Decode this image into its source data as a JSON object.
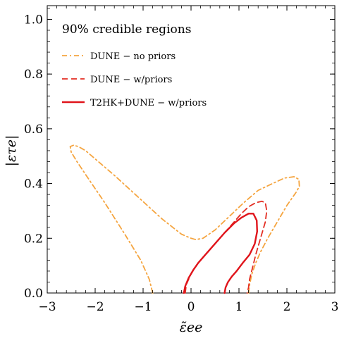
{
  "chart_data": {
    "type": "line",
    "title": "90% credible regions",
    "xlabel": "ε̃ee",
    "ylabel": "|ετe|",
    "xlim": [
      -3,
      3
    ],
    "ylim": [
      0,
      1.05
    ],
    "xticks": [
      -3,
      -2,
      -1,
      0,
      1,
      2,
      3
    ],
    "xtick_labels": [
      "−3",
      "−2",
      "−1",
      "0",
      "1",
      "2",
      "3"
    ],
    "yticks": [
      0.0,
      0.2,
      0.4,
      0.6,
      0.8,
      1.0
    ],
    "ytick_labels": [
      "0.0",
      "0.2",
      "0.4",
      "0.6",
      "0.8",
      "1.0"
    ],
    "grid": false,
    "legend_position": "top-left",
    "series": [
      {
        "name": "DUNE − no priors",
        "color": "#f5a540",
        "style": "dashdot",
        "x": [
          -0.8,
          -0.87,
          -1.05,
          -1.4,
          -1.8,
          -2.15,
          -2.38,
          -2.5,
          -2.52,
          -2.45,
          -2.35,
          -2.2,
          -2.0,
          -1.6,
          -1.1,
          -0.6,
          -0.2,
          0.0,
          0.1,
          0.25,
          0.5,
          0.8,
          1.1,
          1.4,
          1.7,
          1.95,
          2.15,
          2.25,
          2.26,
          2.2,
          2.0,
          1.8,
          1.6,
          1.45,
          1.35,
          1.27,
          1.22,
          1.2
        ],
        "y": [
          0.0,
          0.05,
          0.12,
          0.22,
          0.33,
          0.42,
          0.48,
          0.515,
          0.535,
          0.54,
          0.535,
          0.52,
          0.49,
          0.43,
          0.35,
          0.27,
          0.215,
          0.2,
          0.195,
          0.2,
          0.23,
          0.28,
          0.33,
          0.375,
          0.4,
          0.42,
          0.425,
          0.415,
          0.39,
          0.37,
          0.32,
          0.26,
          0.2,
          0.15,
          0.11,
          0.07,
          0.03,
          0.0
        ]
      },
      {
        "name": "DUNE − w/priors",
        "color": "#e32d22",
        "style": "dashed",
        "x": [
          -0.12,
          -0.1,
          0.0,
          0.15,
          0.35,
          0.6,
          0.85,
          1.05,
          1.2,
          1.35,
          1.48,
          1.55,
          1.58,
          1.55,
          1.45,
          1.35,
          1.28,
          1.22,
          1.2,
          1.17
        ],
        "y": [
          0.0,
          0.03,
          0.07,
          0.11,
          0.15,
          0.2,
          0.25,
          0.29,
          0.315,
          0.33,
          0.335,
          0.33,
          0.3,
          0.26,
          0.2,
          0.14,
          0.09,
          0.05,
          0.02,
          0.0
        ]
      },
      {
        "name": "T2HK+DUNE − w/priors",
        "color": "#e0141b",
        "style": "solid",
        "x": [
          -0.15,
          -0.12,
          -0.05,
          0.05,
          0.15,
          0.3,
          0.5,
          0.7,
          0.9,
          1.05,
          1.2,
          1.3,
          1.37,
          1.38,
          1.33,
          1.22,
          1.08,
          0.95,
          0.85,
          0.77,
          0.72,
          0.7
        ],
        "y": [
          0.0,
          0.025,
          0.055,
          0.085,
          0.11,
          0.14,
          0.18,
          0.22,
          0.255,
          0.275,
          0.29,
          0.29,
          0.265,
          0.225,
          0.18,
          0.14,
          0.11,
          0.08,
          0.06,
          0.04,
          0.02,
          0.0
        ]
      }
    ]
  }
}
